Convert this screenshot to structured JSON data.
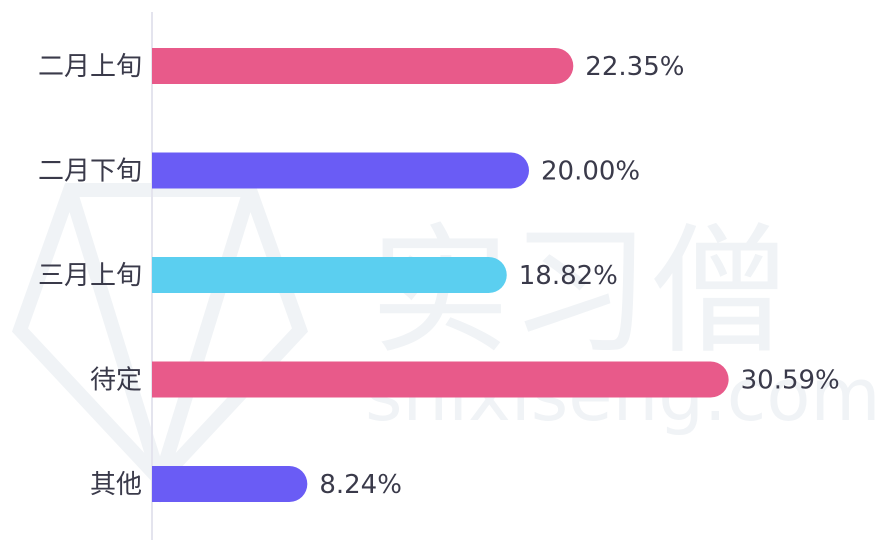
{
  "chart_data": {
    "type": "bar",
    "orientation": "horizontal",
    "categories": [
      "二月上旬",
      "二月下旬",
      "三月上旬",
      "待定",
      "其他"
    ],
    "values": [
      22.35,
      20.0,
      18.82,
      30.59,
      8.24
    ],
    "value_labels": [
      "22.35%",
      "20.00%",
      "18.82%",
      "30.59%",
      "8.24%"
    ],
    "bar_colors": [
      "#e85a8a",
      "#6a5cf5",
      "#5bcff0",
      "#e85a8a",
      "#6a5cf5"
    ],
    "value_unit": "%",
    "grid": false,
    "legend": "none"
  },
  "watermark": {
    "text_cn": "实习僧",
    "text_en": "shixiseng.com"
  }
}
